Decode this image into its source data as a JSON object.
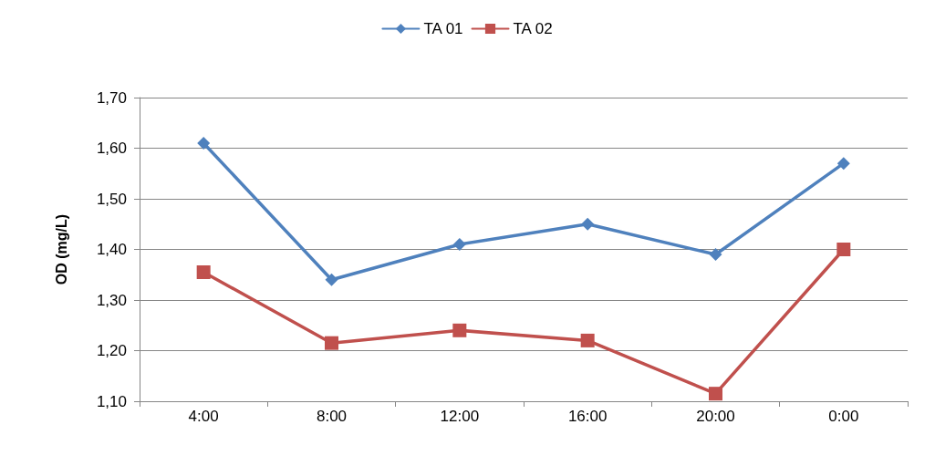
{
  "chart_data": {
    "type": "line",
    "ylabel": "OD (mg/L)",
    "categories": [
      "4:00",
      "8:00",
      "12:00",
      "16:00",
      "20:00",
      "0:00"
    ],
    "series": [
      {
        "name": "TA 01",
        "color": "#4f81bd",
        "marker": "diamond",
        "values": [
          1.61,
          1.34,
          1.41,
          1.45,
          1.39,
          1.57
        ]
      },
      {
        "name": "TA 02",
        "color": "#c0504d",
        "marker": "square",
        "values": [
          1.355,
          1.215,
          1.24,
          1.22,
          1.115,
          1.4
        ]
      }
    ],
    "ylim": [
      1.1,
      1.7
    ],
    "yticks": [
      {
        "value": 1.1,
        "label": "1,10"
      },
      {
        "value": 1.2,
        "label": "1,20"
      },
      {
        "value": 1.3,
        "label": "1,30"
      },
      {
        "value": 1.4,
        "label": "1,40"
      },
      {
        "value": 1.5,
        "label": "1,50"
      },
      {
        "value": 1.6,
        "label": "1,60"
      },
      {
        "value": 1.7,
        "label": "1,70"
      }
    ],
    "grid": "y",
    "legend": "top",
    "line_style": "solid"
  }
}
